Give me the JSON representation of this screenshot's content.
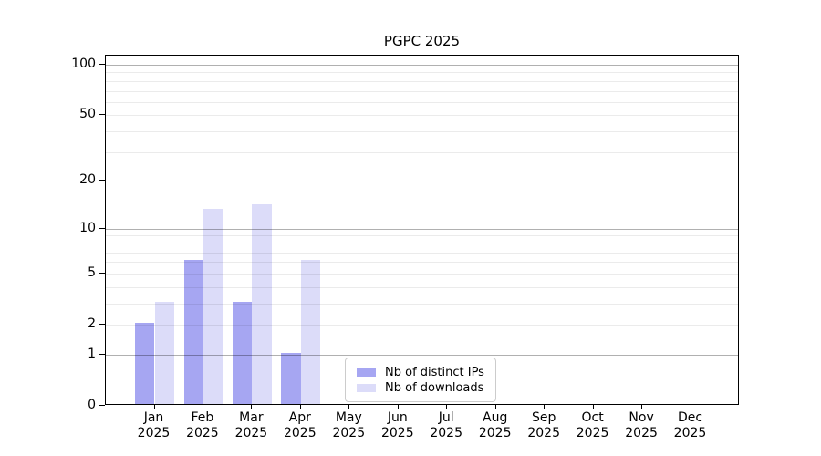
{
  "figure": {
    "title": "PGPC 2025",
    "background": "#ffffff"
  },
  "chart_data": {
    "type": "bar",
    "title": "PGPC 2025",
    "categories": [
      "Jan 2025",
      "Feb 2025",
      "Mar 2025",
      "Apr 2025",
      "May 2025",
      "Jun 2025",
      "Jul 2025",
      "Aug 2025",
      "Sep 2025",
      "Oct 2025",
      "Nov 2025",
      "Dec 2025"
    ],
    "series": [
      {
        "name": "Nb of distinct IPs",
        "color": "#a6a6f2",
        "values": [
          2,
          6,
          3,
          1,
          0,
          0,
          0,
          0,
          0,
          0,
          0,
          0
        ]
      },
      {
        "name": "Nb of downloads",
        "color": "#dcdcf9",
        "values": [
          3,
          13,
          14,
          6,
          0,
          0,
          0,
          0,
          0,
          0,
          0,
          0
        ]
      }
    ],
    "xlabel": "",
    "ylabel": "",
    "y_axis": {
      "scale": "log-like (log(1+v))",
      "tick_values": [
        0,
        1,
        2,
        5,
        10,
        20,
        50,
        100
      ],
      "tick_labels": [
        "0",
        "1",
        "2",
        "5",
        "10",
        "20",
        "50",
        "100"
      ],
      "major_grid_values": [
        1,
        10,
        100
      ],
      "minor_grid_values": [
        2,
        3,
        4,
        5,
        6,
        7,
        8,
        9,
        20,
        30,
        40,
        50,
        60,
        70,
        80,
        90
      ],
      "ylim": [
        0,
        113
      ]
    },
    "grid": true,
    "legend": {
      "position": "lower center-right inside plot",
      "entries": [
        "Nb of distinct IPs",
        "Nb of downloads"
      ]
    }
  },
  "colors": {
    "bar_distinct_ips": "#a6a6f2",
    "bar_downloads": "#dcdcf9",
    "major_grid": "#b0b0b0",
    "minor_grid": "#ebebeb",
    "spine": "#000000",
    "text": "#000000",
    "legend_border": "#cccccc"
  }
}
